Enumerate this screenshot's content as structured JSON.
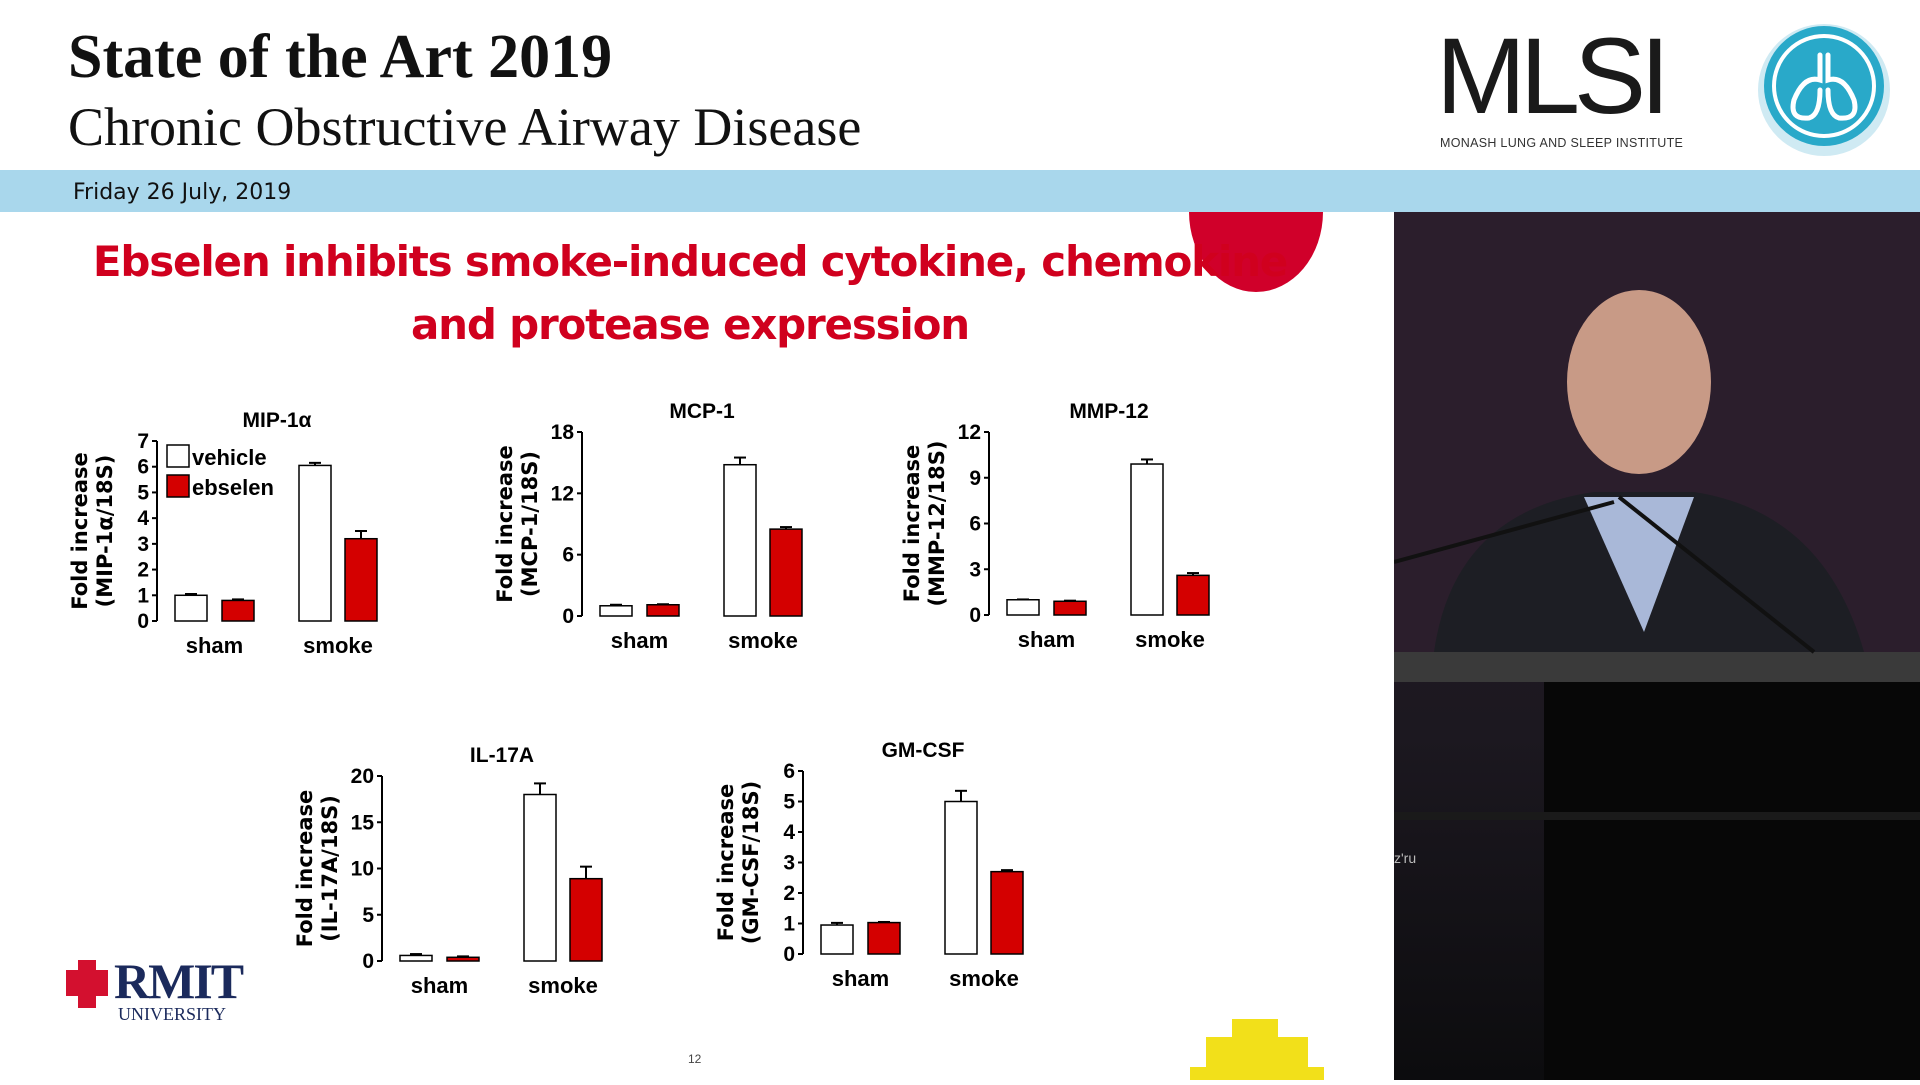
{
  "header": {
    "title": "State of the Art 2019",
    "subtitle": "Chronic Obstructive Airway Disease",
    "date": "Friday 26 July, 2019",
    "logo": {
      "name": "MLSI",
      "tagline": "MONASH LUNG AND SLEEP INSTITUTE"
    }
  },
  "slide": {
    "title_line1": "Ebselen inhibits smoke-induced cytokine, chemokine",
    "title_line2": "and protease expression",
    "page_number": "12",
    "footer_logo": {
      "name": "RMIT",
      "sub": "UNIVERSITY"
    },
    "colors": {
      "title": "#d0001e",
      "ebselen": "#d40000",
      "vehicle": "#ffffff",
      "band": "#a9d7ec"
    }
  },
  "video": {
    "overlay_text": "z'ru"
  },
  "chart_data": [
    {
      "type": "bar",
      "title": "MIP-1α",
      "ylabel": "Fold increase (MIP-1α/18S)",
      "categories": [
        "sham",
        "smoke"
      ],
      "ylim": [
        0,
        7
      ],
      "yticks": [
        0,
        1,
        2,
        3,
        4,
        5,
        6,
        7
      ],
      "legend": [
        "vehicle",
        "ebselen"
      ],
      "legend_position": "top-left",
      "series": [
        {
          "name": "vehicle",
          "values": [
            1.0,
            6.05
          ],
          "errors": [
            0.05,
            0.1
          ]
        },
        {
          "name": "ebselen",
          "values": [
            0.8,
            3.2
          ],
          "errors": [
            0.04,
            0.3
          ]
        }
      ]
    },
    {
      "type": "bar",
      "title": "MCP-1",
      "ylabel": "Fold increase (MCP-1/18S)",
      "categories": [
        "sham",
        "smoke"
      ],
      "ylim": [
        0,
        18
      ],
      "yticks": [
        0,
        6,
        12,
        18
      ],
      "series": [
        {
          "name": "vehicle",
          "values": [
            1.0,
            14.8
          ],
          "errors": [
            0.1,
            0.7
          ]
        },
        {
          "name": "ebselen",
          "values": [
            1.1,
            8.5
          ],
          "errors": [
            0.05,
            0.2
          ]
        }
      ]
    },
    {
      "type": "bar",
      "title": "MMP-12",
      "ylabel": "Fold increase (MMP-12/18S)",
      "categories": [
        "sham",
        "smoke"
      ],
      "ylim": [
        0,
        12
      ],
      "yticks": [
        0,
        3,
        6,
        9,
        12
      ],
      "series": [
        {
          "name": "vehicle",
          "values": [
            1.0,
            9.9
          ],
          "errors": [
            0.02,
            0.3
          ]
        },
        {
          "name": "ebselen",
          "values": [
            0.9,
            2.6
          ],
          "errors": [
            0.04,
            0.15
          ]
        }
      ]
    },
    {
      "type": "bar",
      "title": "IL-17A",
      "ylabel": "Fold increase (IL-17A/18S)",
      "categories": [
        "sham",
        "smoke"
      ],
      "ylim": [
        0,
        20
      ],
      "yticks": [
        0,
        5,
        10,
        15,
        20
      ],
      "series": [
        {
          "name": "vehicle",
          "values": [
            0.6,
            18.0
          ],
          "errors": [
            0.15,
            1.2
          ]
        },
        {
          "name": "ebselen",
          "values": [
            0.4,
            8.9
          ],
          "errors": [
            0.1,
            1.3
          ]
        }
      ]
    },
    {
      "type": "bar",
      "title": "GM-CSF",
      "ylabel": "Fold increase (GM-CSF/18S)",
      "categories": [
        "sham",
        "smoke"
      ],
      "ylim": [
        0,
        6
      ],
      "yticks": [
        0,
        1,
        2,
        3,
        4,
        5,
        6
      ],
      "series": [
        {
          "name": "vehicle",
          "values": [
            0.95,
            5.0
          ],
          "errors": [
            0.07,
            0.35
          ]
        },
        {
          "name": "ebselen",
          "values": [
            1.03,
            2.7
          ],
          "errors": [
            0.02,
            0.05
          ]
        }
      ]
    }
  ]
}
